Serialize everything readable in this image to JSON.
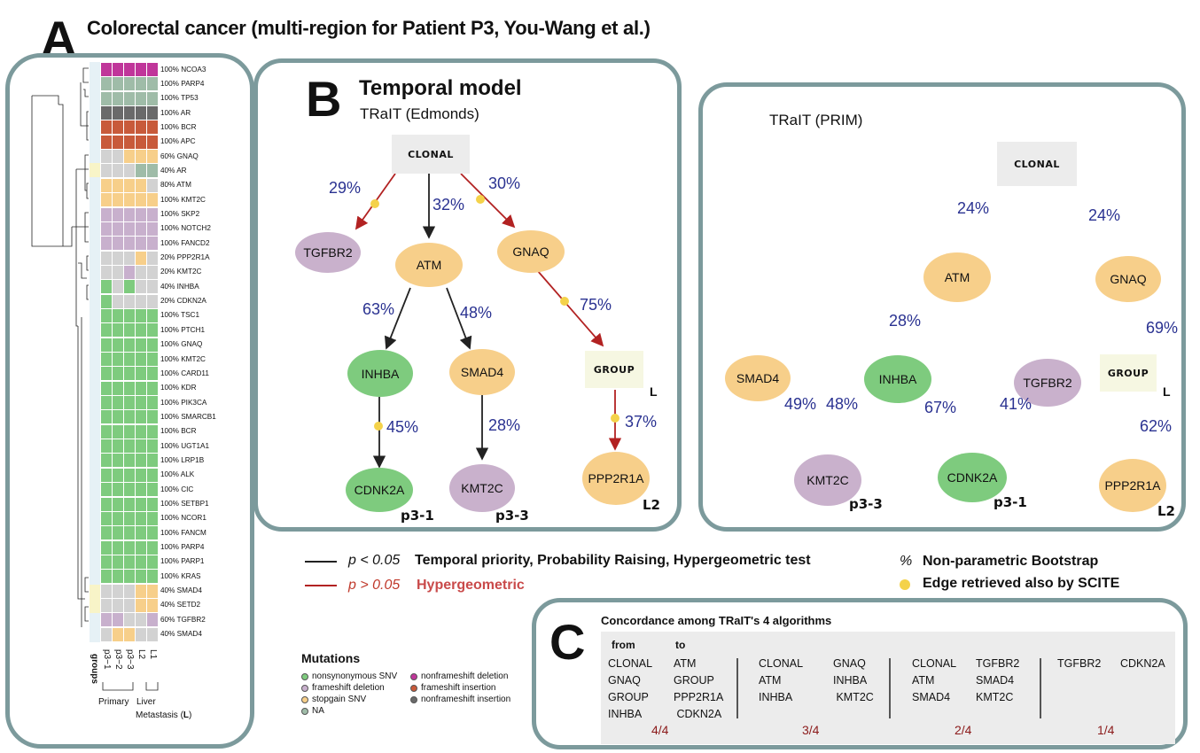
{
  "panel_a": {
    "letter": "A",
    "title": "Colorectal cancer (multi-region for Patient P3, You-Wang et al.)",
    "rows": [
      {
        "label": "100% NCOA3",
        "c": [
          "mag",
          "mag",
          "mag",
          "mag",
          "mag"
        ]
      },
      {
        "label": "100% PARP4",
        "c": [
          "na",
          "na",
          "na",
          "na",
          "na"
        ]
      },
      {
        "label": "100% TP53",
        "c": [
          "na",
          "na",
          "na",
          "na",
          "na"
        ]
      },
      {
        "label": "100% AR",
        "c": [
          "dk",
          "dk",
          "dk",
          "dk",
          "dk"
        ]
      },
      {
        "label": "100% BCR",
        "c": [
          "rd",
          "rd",
          "rd",
          "rd",
          "rd"
        ]
      },
      {
        "label": "100% APC",
        "c": [
          "rd",
          "rd",
          "rd",
          "rd",
          "rd"
        ]
      },
      {
        "label": "60% GNAQ",
        "c": [
          "gy",
          "gy",
          "or",
          "or",
          "or"
        ]
      },
      {
        "label": "40% AR",
        "c": [
          "gy",
          "gy",
          "gy",
          "na",
          "na"
        ]
      },
      {
        "label": "80% ATM",
        "c": [
          "or",
          "or",
          "or",
          "or",
          "gy"
        ]
      },
      {
        "label": "100% KMT2C",
        "c": [
          "or",
          "or",
          "or",
          "or",
          "or"
        ]
      },
      {
        "label": "100% SKP2",
        "c": [
          "pu",
          "pu",
          "pu",
          "pu",
          "pu"
        ]
      },
      {
        "label": "100% NOTCH2",
        "c": [
          "pu",
          "pu",
          "pu",
          "pu",
          "pu"
        ]
      },
      {
        "label": "100% FANCD2",
        "c": [
          "pu",
          "pu",
          "pu",
          "pu",
          "pu"
        ]
      },
      {
        "label": "20% PPP2R1A",
        "c": [
          "gy",
          "gy",
          "gy",
          "or",
          "gy"
        ]
      },
      {
        "label": "20% KMT2C",
        "c": [
          "gy",
          "gy",
          "pu",
          "gy",
          "gy"
        ]
      },
      {
        "label": "40% INHBA",
        "c": [
          "gr",
          "gy",
          "gr",
          "gy",
          "gy"
        ]
      },
      {
        "label": "20% CDKN2A",
        "c": [
          "gr",
          "gy",
          "gy",
          "gy",
          "gy"
        ]
      },
      {
        "label": "100% TSC1",
        "c": [
          "gr",
          "gr",
          "gr",
          "gr",
          "gr"
        ]
      },
      {
        "label": "100% PTCH1",
        "c": [
          "gr",
          "gr",
          "gr",
          "gr",
          "gr"
        ]
      },
      {
        "label": "100% GNAQ",
        "c": [
          "gr",
          "gr",
          "gr",
          "gr",
          "gr"
        ]
      },
      {
        "label": "100% KMT2C",
        "c": [
          "gr",
          "gr",
          "gr",
          "gr",
          "gr"
        ]
      },
      {
        "label": "100% CARD11",
        "c": [
          "gr",
          "gr",
          "gr",
          "gr",
          "gr"
        ]
      },
      {
        "label": "100% KDR",
        "c": [
          "gr",
          "gr",
          "gr",
          "gr",
          "gr"
        ]
      },
      {
        "label": "100% PIK3CA",
        "c": [
          "gr",
          "gr",
          "gr",
          "gr",
          "gr"
        ]
      },
      {
        "label": "100% SMARCB1",
        "c": [
          "gr",
          "gr",
          "gr",
          "gr",
          "gr"
        ]
      },
      {
        "label": "100% BCR",
        "c": [
          "gr",
          "gr",
          "gr",
          "gr",
          "gr"
        ]
      },
      {
        "label": "100% UGT1A1",
        "c": [
          "gr",
          "gr",
          "gr",
          "gr",
          "gr"
        ]
      },
      {
        "label": "100% LRP1B",
        "c": [
          "gr",
          "gr",
          "gr",
          "gr",
          "gr"
        ]
      },
      {
        "label": "100% ALK",
        "c": [
          "gr",
          "gr",
          "gr",
          "gr",
          "gr"
        ]
      },
      {
        "label": "100% CIC",
        "c": [
          "gr",
          "gr",
          "gr",
          "gr",
          "gr"
        ]
      },
      {
        "label": "100% SETBP1",
        "c": [
          "gr",
          "gr",
          "gr",
          "gr",
          "gr"
        ]
      },
      {
        "label": "100% NCOR1",
        "c": [
          "gr",
          "gr",
          "gr",
          "gr",
          "gr"
        ]
      },
      {
        "label": "100% FANCM",
        "c": [
          "gr",
          "gr",
          "gr",
          "gr",
          "gr"
        ]
      },
      {
        "label": "100% PARP4",
        "c": [
          "gr",
          "gr",
          "gr",
          "gr",
          "gr"
        ]
      },
      {
        "label": "100% PARP1",
        "c": [
          "gr",
          "gr",
          "gr",
          "gr",
          "gr"
        ]
      },
      {
        "label": "100% KRAS",
        "c": [
          "gr",
          "gr",
          "gr",
          "gr",
          "gr"
        ]
      },
      {
        "label": "40% SMAD4",
        "c": [
          "gy",
          "gy",
          "gy",
          "or",
          "or"
        ]
      },
      {
        "label": "40% SETD2",
        "c": [
          "gy",
          "gy",
          "gy",
          "or",
          "or"
        ]
      },
      {
        "label": "60% TGFBR2",
        "c": [
          "pu",
          "pu",
          "gy",
          "gy",
          "pu"
        ]
      },
      {
        "label": "40% SMAD4",
        "c": [
          "gy",
          "or",
          "or",
          "gy",
          "gy"
        ]
      }
    ],
    "groups_label": "groups",
    "samples": [
      "p3−1",
      "p3−2",
      "p3−3",
      "L2",
      "L1"
    ],
    "primary_label": "Primary",
    "liver_label": "Liver",
    "metastasis_label": "Metastasis (",
    "metastasis_L": "L",
    "metastasis_close": ")",
    "colors": {
      "mag": "#c0369a",
      "na": "#9fbca8",
      "dk": "#6a6a6a",
      "rd": "#c85a3a",
      "gy": "#d2d2d2",
      "or": "#f7cf8a",
      "pu": "#c8b0cd",
      "gr": "#7ecb7e"
    }
  },
  "mutations_legend": {
    "title": "Mutations",
    "items": [
      {
        "label": "nonsynonymous SNV",
        "color": "#7ecb7e"
      },
      {
        "label": "frameshift deletion",
        "color": "#c8b0cd"
      },
      {
        "label": "stopgain SNV",
        "color": "#f7cf8a"
      },
      {
        "label": "NA",
        "color": "#9fbca8"
      },
      {
        "label": "nonframeshift deletion",
        "color": "#c0369a"
      },
      {
        "label": "frameshift insertion",
        "color": "#c85a3a"
      },
      {
        "label": "nonframeshift insertion",
        "color": "#6a6a6a"
      }
    ]
  },
  "panel_b": {
    "letter": "B",
    "title": "Temporal model",
    "subtitle_edmonds": "TRaIT (Edmonds)",
    "subtitle_prim": "TRaIT (PRIM)",
    "edmonds": {
      "clonal": "CLONAL",
      "group": "GROUP",
      "group_tag": "L",
      "nodes": {
        "tgfbr2": "TGFBR2",
        "atm": "ATM",
        "gnaq": "GNAQ",
        "inhba": "INHBA",
        "smad4": "SMAD4",
        "cdkn2a": "CDNK2A",
        "kmt2c": "KMT2C",
        "ppp2r1a": "PPP2R1A"
      },
      "tags": {
        "p31": "p3-1",
        "p33": "p3-3",
        "l2": "L2"
      },
      "pcts": {
        "tgfbr2": "29%",
        "atm": "32%",
        "gnaq": "30%",
        "inhba": "63%",
        "smad4": "48%",
        "group": "75%",
        "cdkn2a": "45%",
        "kmt2c": "28%",
        "ppp2r1a": "37%"
      }
    },
    "prim": {
      "clonal": "CLONAL",
      "group": "GROUP",
      "group_tag": "L",
      "nodes": {
        "atm": "ATM",
        "gnaq": "GNAQ",
        "smad4": "SMAD4",
        "inhba": "INHBA",
        "tgfbr2": "TGFBR2",
        "kmt2c": "KMT2C",
        "cdkn2a": "CDNK2A",
        "ppp2r1a": "PPP2R1A"
      },
      "tags": {
        "p33": "p3-3",
        "p31": "p3-1",
        "l2": "L2"
      },
      "pcts": {
        "atm": "24%",
        "gnaq": "24%",
        "inhba": "28%",
        "group": "69%",
        "smad4": "49%",
        "inhba_kmt2c": "48%",
        "inhba_cdkn2a": "67%",
        "tgfbr2": "41%",
        "ppp2r1a": "62%"
      }
    }
  },
  "edge_legend": {
    "black_p": "p < 0.05",
    "black_text": "Temporal priority, Probability Raising, Hypergeometric test",
    "red_p": "p > 0.05",
    "red_text": "Hypergeometric",
    "pct_symbol": "%",
    "pct_text": "Non-parametric Bootstrap",
    "dot_text": "Edge retrieved also by SCITE"
  },
  "panel_c": {
    "letter": "C",
    "title": "Concordance among TRaIT's 4 algorithms",
    "from_label": "from",
    "to_label": "to",
    "groups": [
      {
        "from": "CLONAL\nGNAQ\nGROUP\nINHBA",
        "to": "ATM\nGROUP\nPPP2R1A\n CDKN2A",
        "frac": "4/4"
      },
      {
        "from": "CLONAL\nATM\nINHBA",
        "to": "GNAQ\nINHBA\n KMT2C",
        "frac": "3/4"
      },
      {
        "from": "CLONAL\nATM\nSMAD4",
        "to": "TGFBR2\nSMAD4\nKMT2C",
        "frac": "2/4"
      },
      {
        "from": "TGFBR2",
        "to": "CDKN2A",
        "frac": "1/4"
      }
    ]
  }
}
